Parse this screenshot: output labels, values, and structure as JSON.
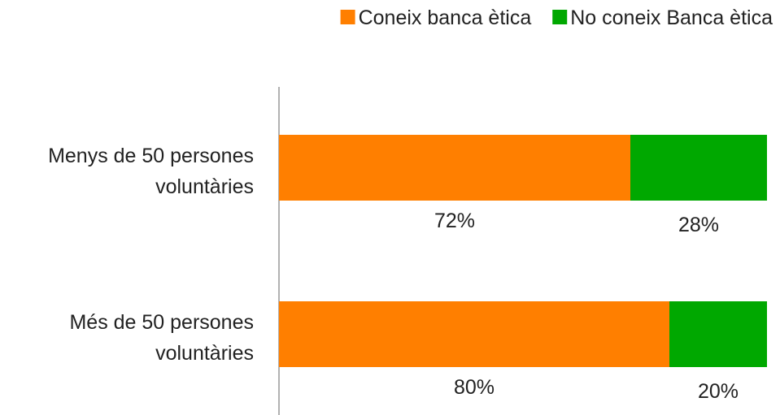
{
  "chart_data": {
    "type": "bar",
    "orientation": "horizontal",
    "stacked": true,
    "categories": [
      [
        "Menys de 50 persones",
        "voluntàries"
      ],
      [
        "Més de 50 persones",
        "voluntàries"
      ]
    ],
    "series": [
      {
        "name": "Coneix banca ètica",
        "color": "#ff7f00",
        "values": [
          72,
          80
        ],
        "labels": [
          "72%",
          "80%"
        ]
      },
      {
        "name": "No coneix Banca ètica",
        "color": "#00a800",
        "values": [
          28,
          20
        ],
        "labels": [
          "28%",
          "20%"
        ]
      }
    ],
    "xlim": [
      0,
      100
    ],
    "grid": false,
    "legend": "top-right",
    "axis_color": "#999999"
  }
}
